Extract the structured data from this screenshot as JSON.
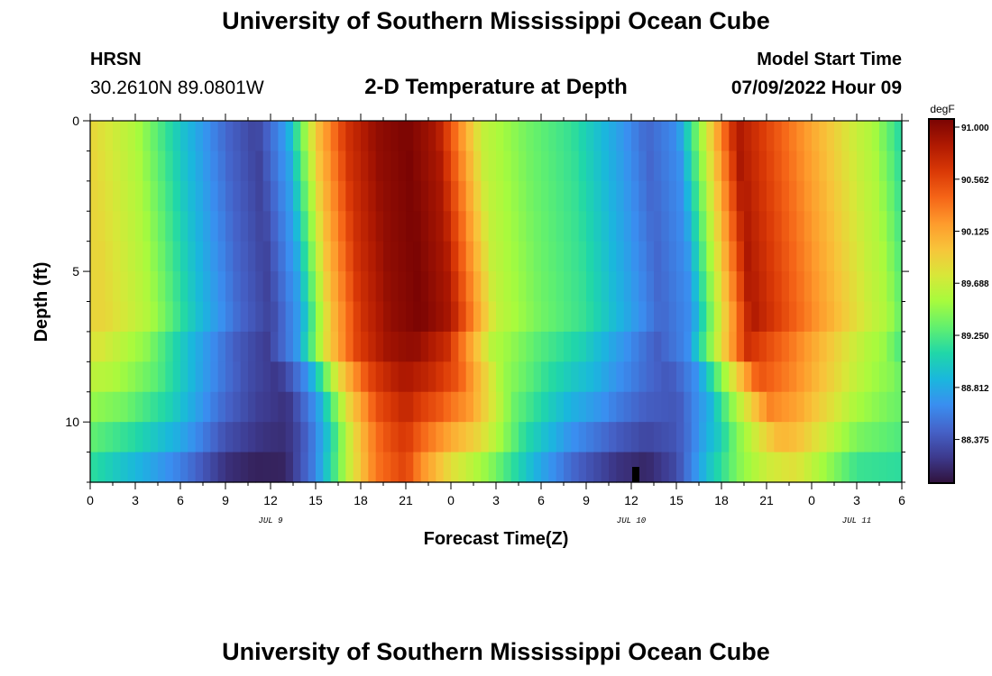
{
  "header": {
    "title": "University of Southern Mississippi Ocean Cube",
    "station": "HRSN",
    "coords": "30.2610N  89.0801W",
    "subtitle": "2-D Temperature at Depth",
    "model_label": "Model Start Time",
    "model_time": "07/09/2022 Hour 09"
  },
  "footer": {
    "title": "University of Southern Mississippi Ocean Cube"
  },
  "chart_data": {
    "type": "heatmap",
    "title": "2-D Temperature at Depth",
    "xlabel": "Forecast Time(Z)",
    "ylabel": "Depth (ft)",
    "x_tick_labels": [
      "0",
      "3",
      "6",
      "9",
      "12",
      "15",
      "18",
      "21",
      "0",
      "3",
      "6",
      "9",
      "12",
      "15",
      "18",
      "21",
      "0",
      "3",
      "6"
    ],
    "x_range_hours": [
      0,
      54
    ],
    "date_labels": [
      {
        "label": "JUL 9",
        "hour": 12
      },
      {
        "label": "JUL 10",
        "hour": 36
      },
      {
        "label": "JUL 11",
        "hour": 51
      }
    ],
    "y_range_ft": [
      0,
      12
    ],
    "y_tick_labels": [
      {
        "label": "0",
        "value": 0
      },
      {
        "label": "5",
        "value": 5
      },
      {
        "label": "10",
        "value": 10
      }
    ],
    "y_minor_step": 1,
    "colorbar": {
      "unit": "degF",
      "min": 87.94,
      "max": 91.0,
      "tick_labels": [
        "91.000",
        "90.562",
        "90.125",
        "89.688",
        "89.250",
        "88.812",
        "88.375"
      ],
      "colors": [
        "#30123b",
        "#3d3a8e",
        "#4562c8",
        "#3a8ef0",
        "#1ab7dd",
        "#20d7a8",
        "#62f06e",
        "#a7fb3d",
        "#d8e739",
        "#f8c43a",
        "#fe9a2c",
        "#f56417",
        "#d93806",
        "#af1902",
        "#7a0403"
      ]
    },
    "time_bins": 108,
    "depth_bins": 12,
    "temperature_model": {
      "description": "approximate temperature (degF) by forecast hour and depth band, sampled from the figure",
      "surface_keyframes_hours": [
        0,
        3,
        6,
        9,
        11,
        13,
        15,
        17,
        19,
        21,
        23,
        24,
        26,
        29,
        32,
        35,
        37,
        39,
        41,
        43,
        45,
        47,
        49,
        51,
        52,
        54
      ],
      "surface_keyframes_degF": [
        89.8,
        89.5,
        88.9,
        88.4,
        88.2,
        88.7,
        89.9,
        90.6,
        90.9,
        91.0,
        90.8,
        90.4,
        89.6,
        89.3,
        89.1,
        88.7,
        88.4,
        88.6,
        89.7,
        90.8,
        90.5,
        90.2,
        89.9,
        89.6,
        89.5,
        89.0
      ],
      "bottom_keyframes_hours": [
        0,
        3,
        6,
        9,
        11,
        13,
        15,
        17,
        19,
        21,
        22,
        24,
        26,
        29,
        32,
        35,
        37,
        39,
        41,
        43,
        45,
        47,
        49,
        51,
        54
      ],
      "bottom_keyframes_degF": [
        89.0,
        88.7,
        88.4,
        88.0,
        87.95,
        88.0,
        88.6,
        89.6,
        90.3,
        90.5,
        90.1,
        89.6,
        89.3,
        88.8,
        88.3,
        88.0,
        87.95,
        88.2,
        88.9,
        89.4,
        89.6,
        89.6,
        89.3,
        89.0,
        89.0
      ],
      "deep_delay_hours": 4,
      "surface_layer_depth_ft": 6.5
    }
  }
}
